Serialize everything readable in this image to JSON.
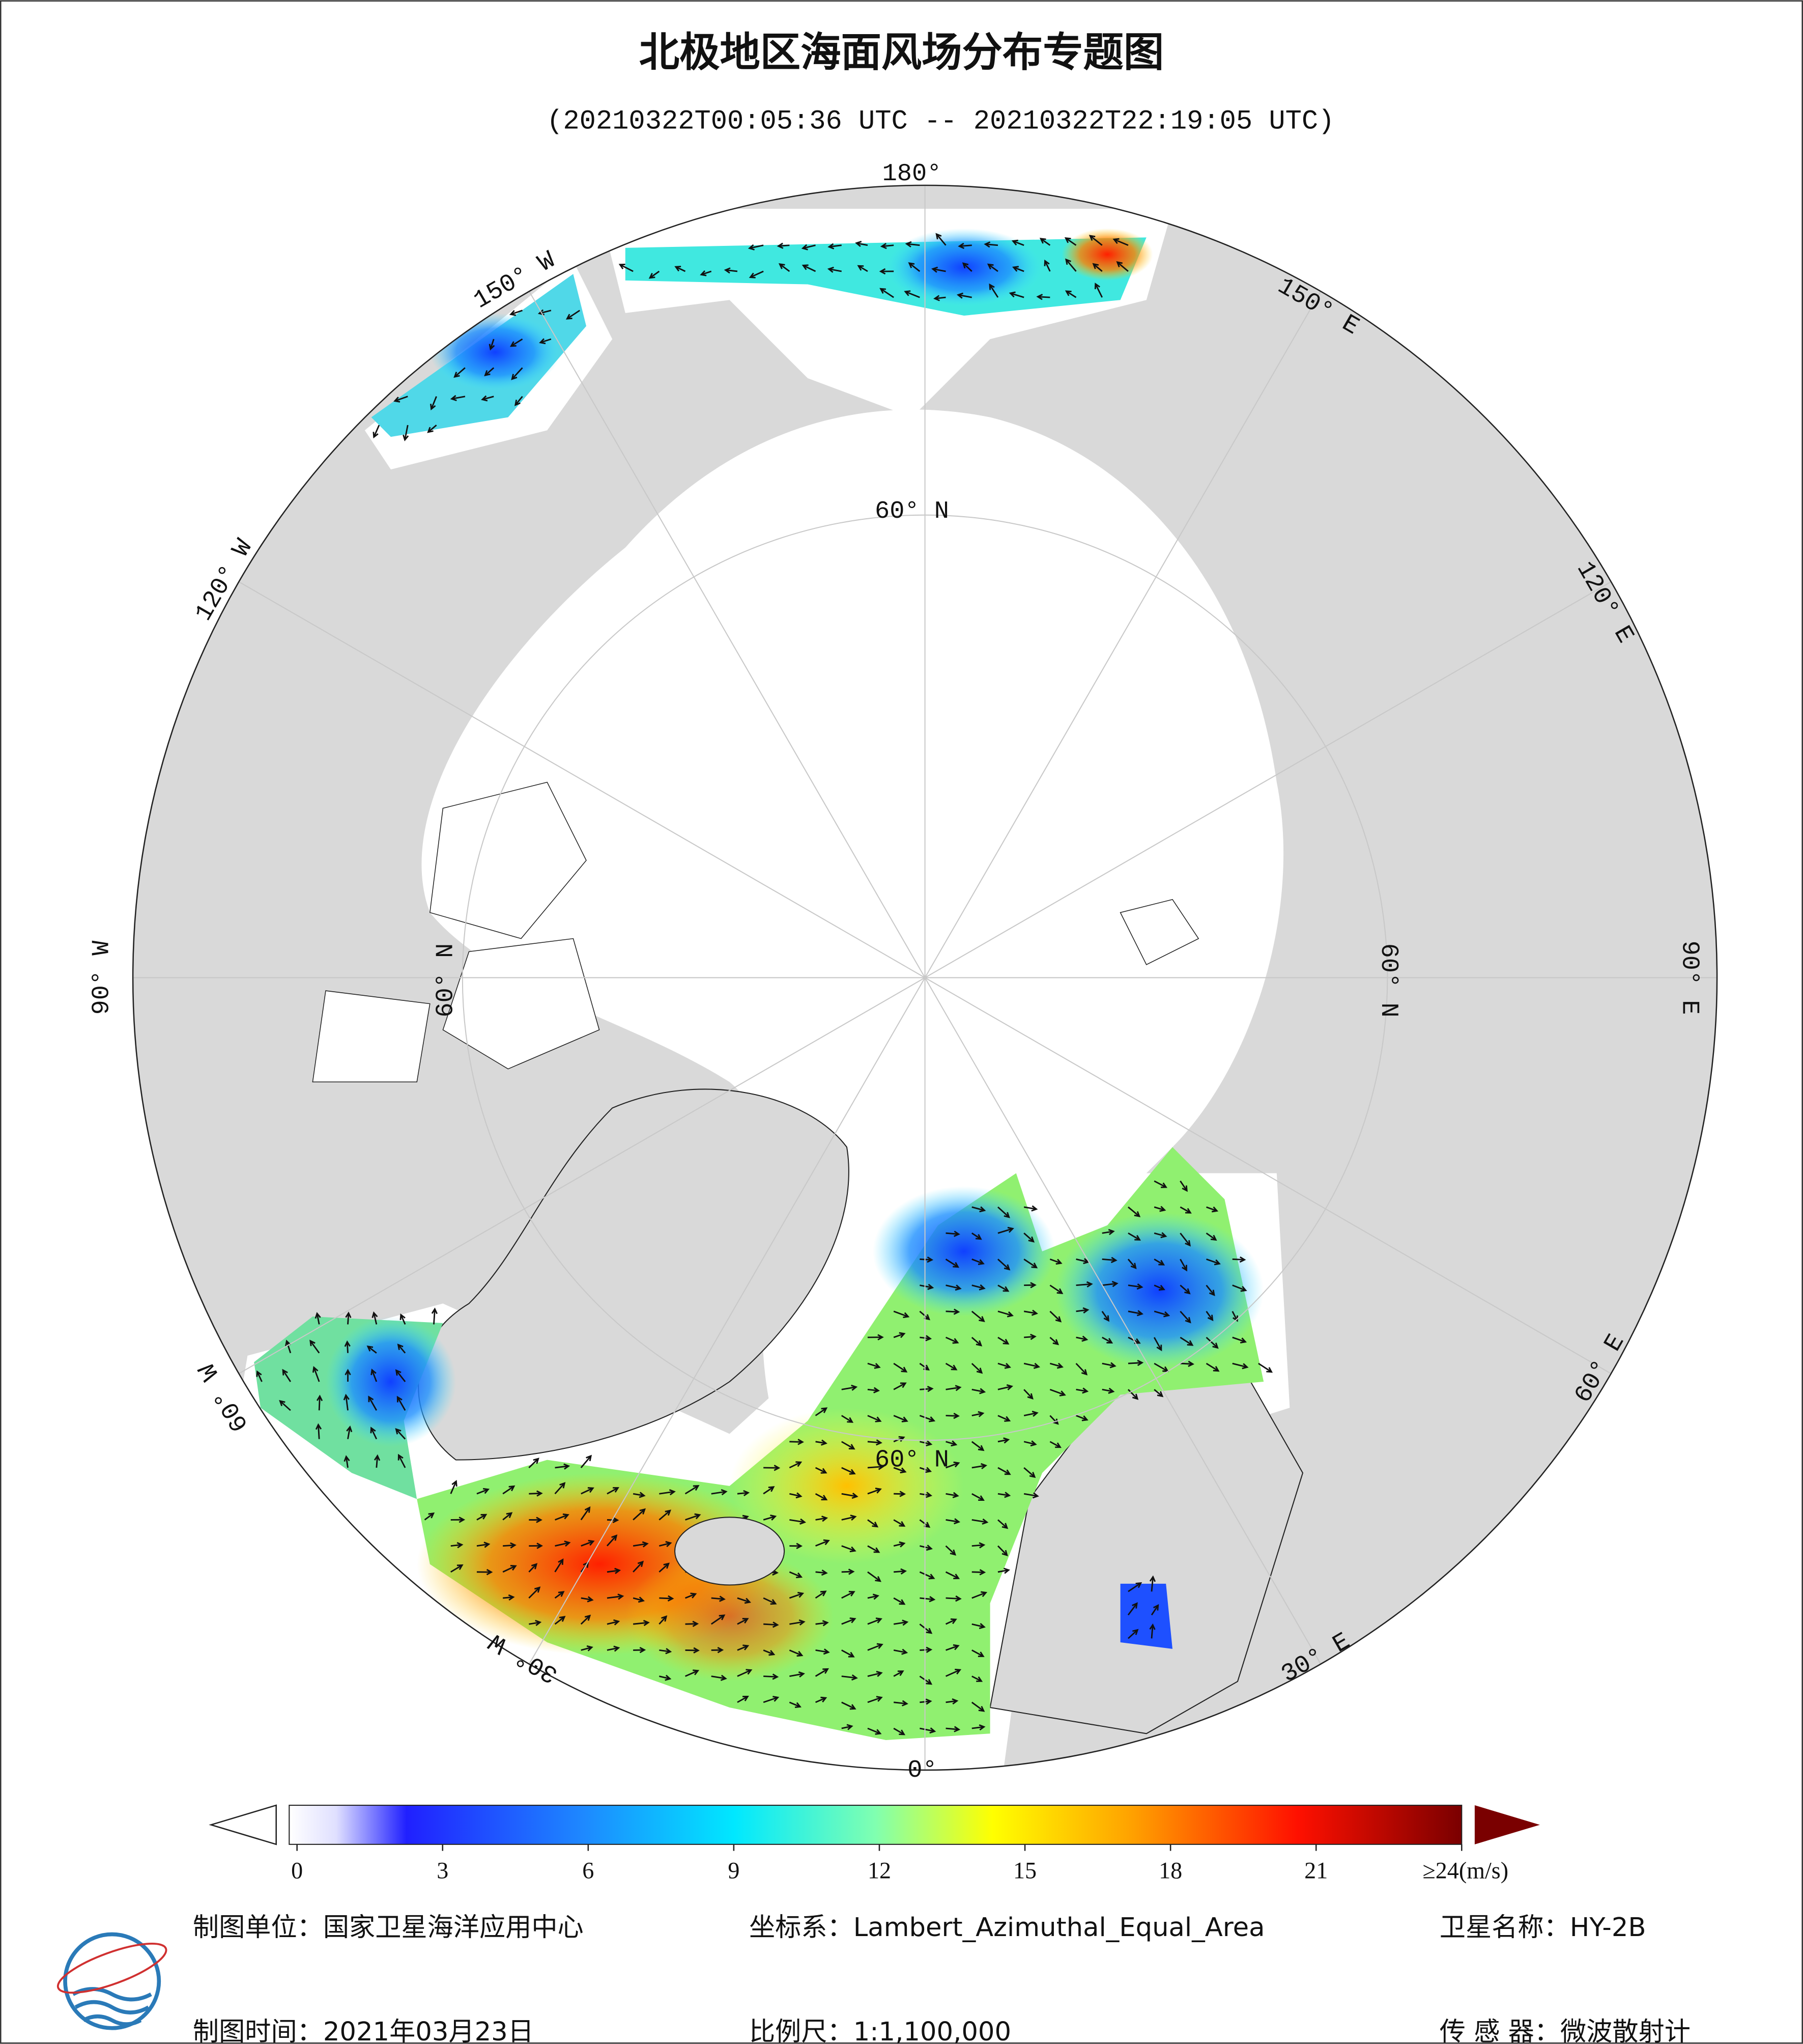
{
  "header": {
    "title": "北极地区海面风场分布专题图",
    "subtitle": "(20210322T00:05:36 UTC -- 20210322T22:19:05 UTC)"
  },
  "map": {
    "longitude_labels": [
      "180°",
      "150° E",
      "120° E",
      "90° E",
      "60° E",
      "30° E",
      "0°",
      "30° W",
      "60° W",
      "90° W",
      "120° W",
      "150° W"
    ],
    "latitude_labels": [
      "60° N",
      "60° N",
      "60° N",
      "60° N"
    ]
  },
  "colorbar": {
    "range": [
      0,
      24
    ],
    "ticks": [
      0,
      3,
      6,
      9,
      12,
      15,
      18,
      21,
      {
        "value": 24,
        "label": "≥24(m/s)"
      }
    ]
  },
  "footer": {
    "unit": "制图单位：国家卫星海洋应用中心",
    "projection": "坐标系：Lambert_Azimuthal_Equal_Area",
    "satellite": "卫星名称：HY-2B",
    "date": "制图时间：2021年03月23日",
    "scale": "比例尺：1:1,100,000",
    "sensor": "传 感 器：微波散射计"
  }
}
